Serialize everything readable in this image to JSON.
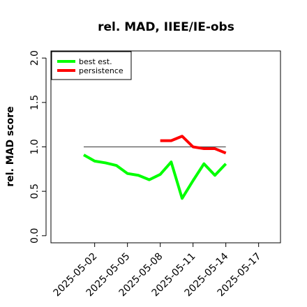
{
  "chart_data": {
    "type": "line",
    "title": "rel. MAD, IIEE/IE-obs",
    "xlabel": "",
    "ylabel": "rel. MAD score",
    "ylim": [
      0.0,
      2.0
    ],
    "xlim": [
      "2025-04-28",
      "2025-05-19"
    ],
    "x_ticks": [
      "2025-05-02",
      "2025-05-05",
      "2025-05-08",
      "2025-05-11",
      "2025-05-14",
      "2025-05-17"
    ],
    "y_ticks": [
      "0.0",
      "0.5",
      "1.0",
      "1.5",
      "2.0"
    ],
    "reference_line": {
      "y": 1.0,
      "x_start": "2025-05-01",
      "x_end": "2025-05-14",
      "color": "#555555"
    },
    "legend_position": "top-left",
    "series": [
      {
        "name": "best est.",
        "color": "#00ff00",
        "x": [
          "2025-05-01",
          "2025-05-02",
          "2025-05-03",
          "2025-05-04",
          "2025-05-05",
          "2025-05-06",
          "2025-05-07",
          "2025-05-08",
          "2025-05-09",
          "2025-05-10",
          "2025-05-11",
          "2025-05-12",
          "2025-05-13",
          "2025-05-14"
        ],
        "values": [
          0.91,
          0.84,
          0.82,
          0.79,
          0.7,
          0.68,
          0.63,
          0.69,
          0.83,
          0.42,
          0.62,
          0.81,
          0.68,
          0.81
        ]
      },
      {
        "name": "persistence",
        "color": "#ff0000",
        "x": [
          "2025-05-08",
          "2025-05-09",
          "2025-05-10",
          "2025-05-11",
          "2025-05-12",
          "2025-05-13",
          "2025-05-14"
        ],
        "values": [
          1.07,
          1.07,
          1.12,
          1.0,
          0.98,
          0.98,
          0.93
        ]
      }
    ]
  }
}
